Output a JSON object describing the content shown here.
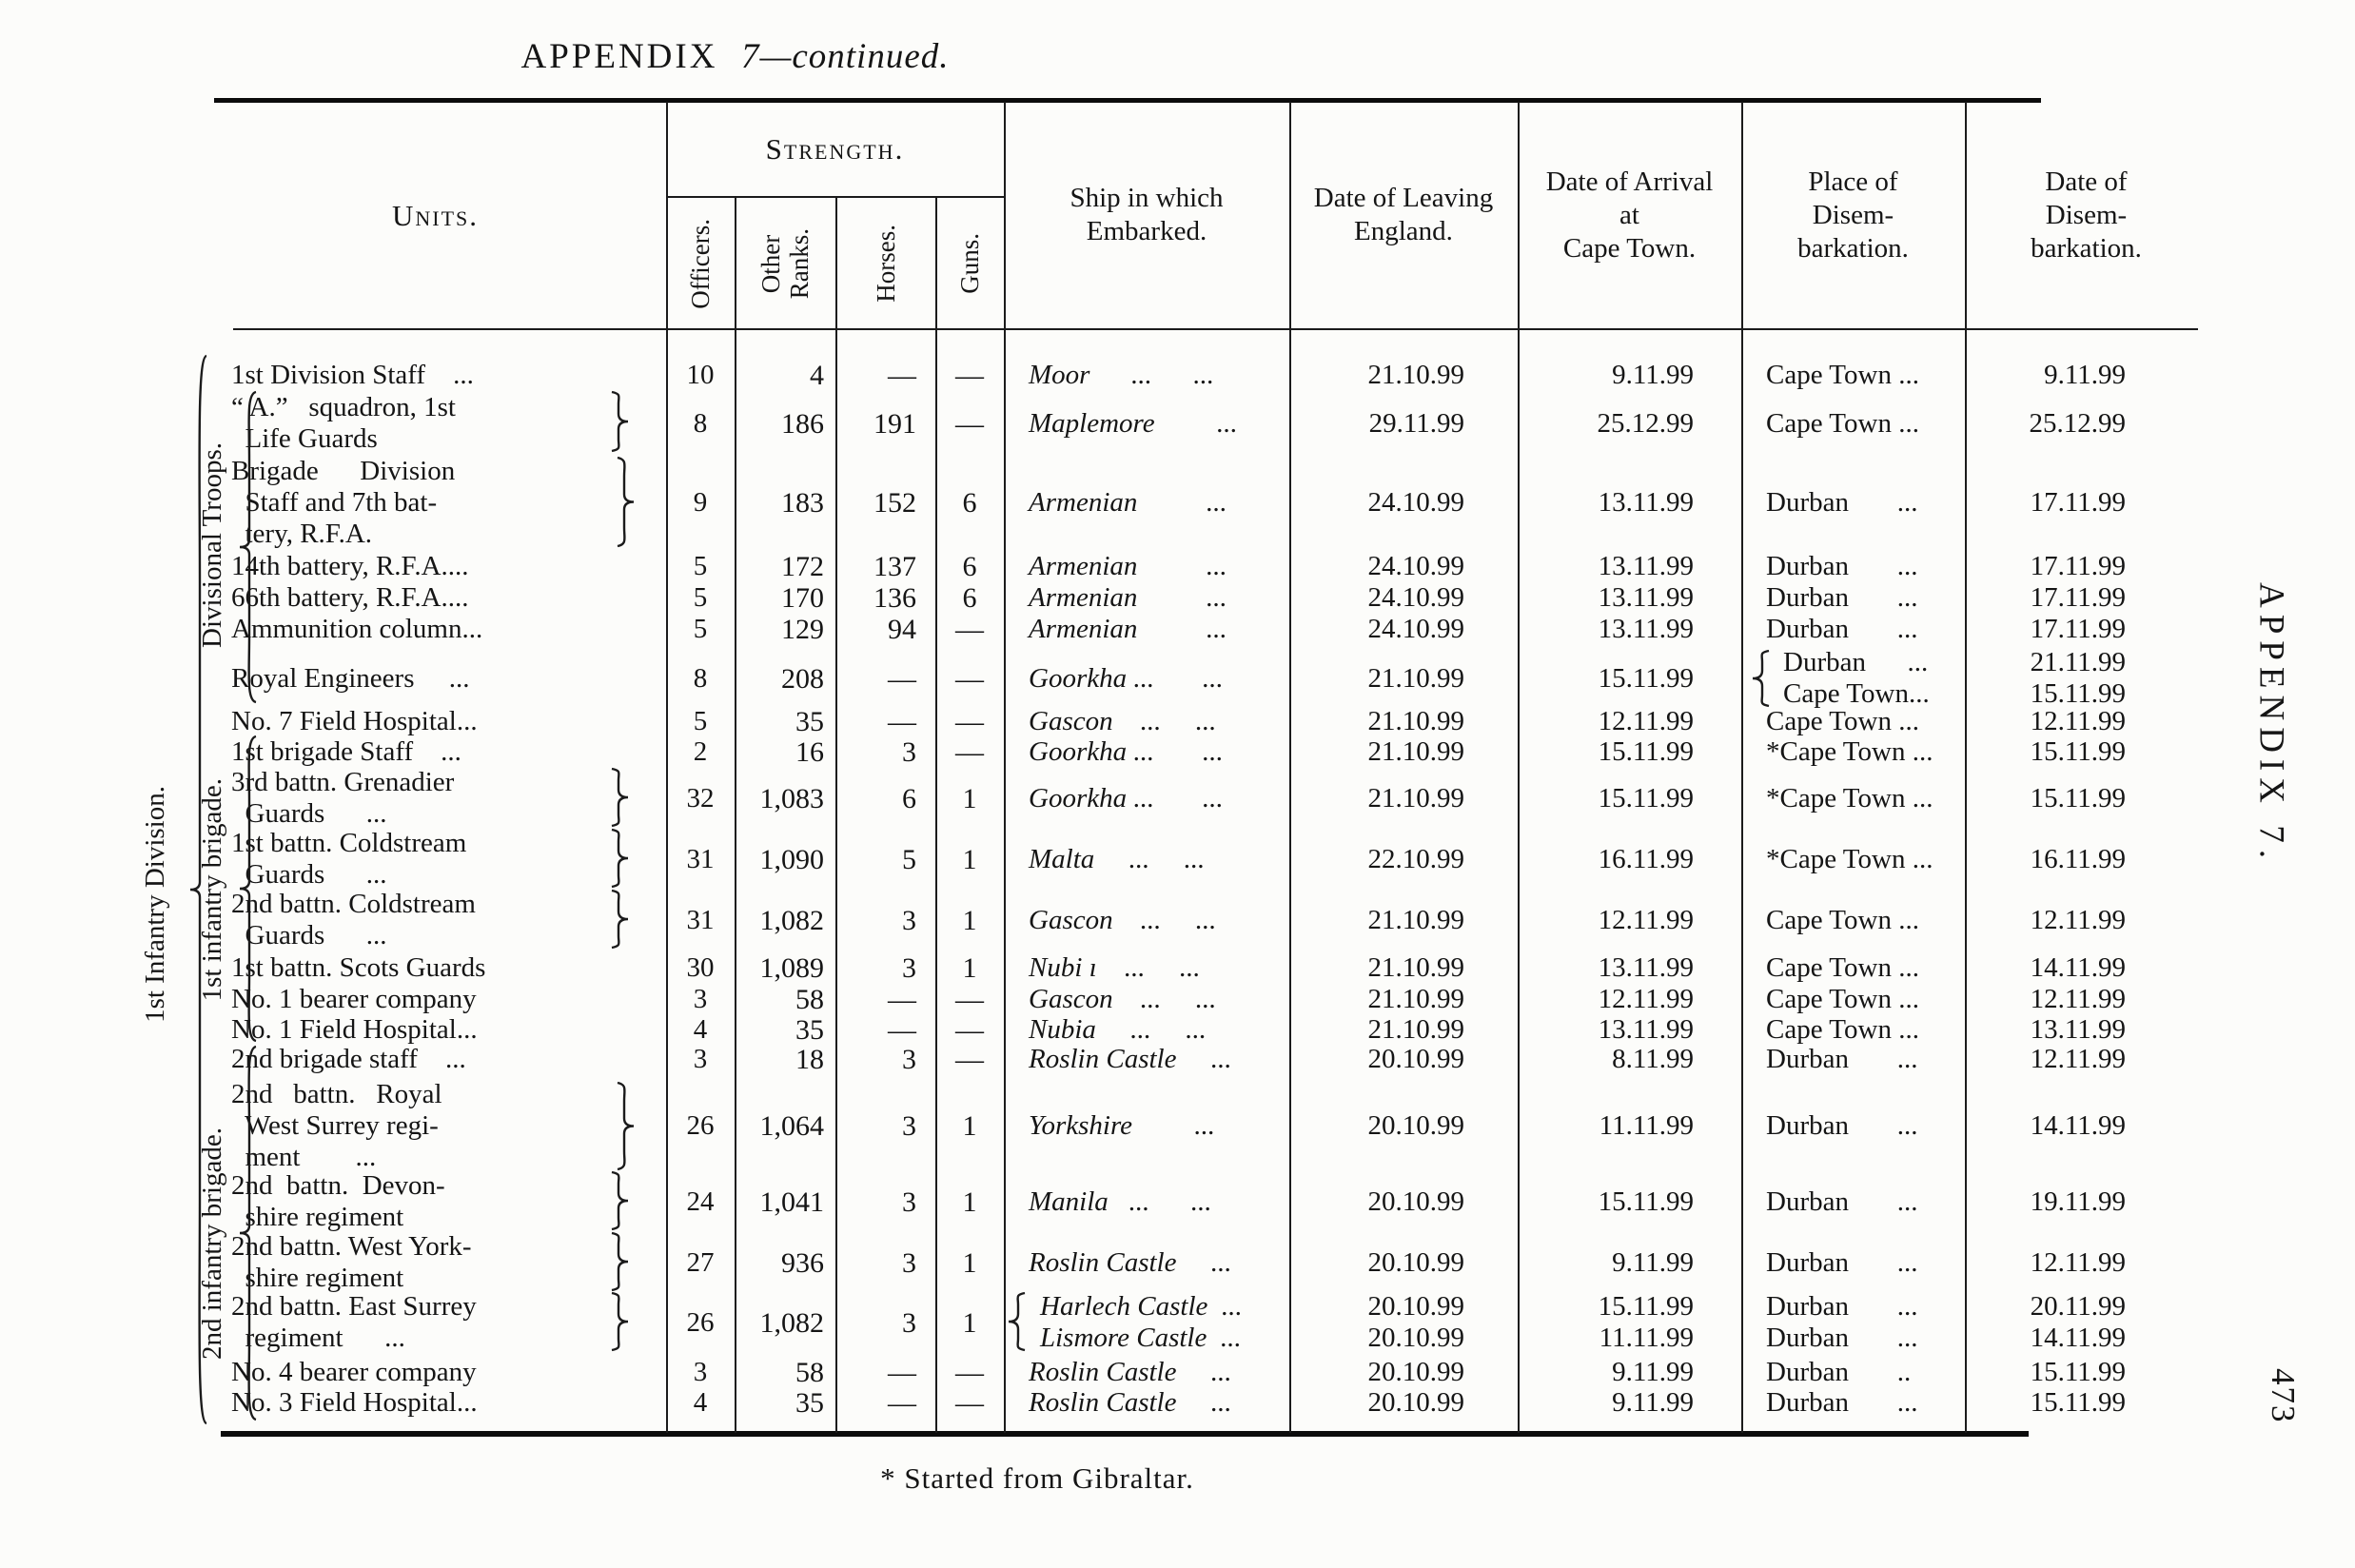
{
  "page": {
    "title_main": "APPENDIX  ",
    "title_italic": "7—continued.",
    "footnote": "* Started from Gibraltar.",
    "margin_label": "APPENDIX 7.",
    "page_number": "473",
    "ink_color": "#151515",
    "paper_color": "#fcfcfa"
  },
  "header": {
    "units": "Units.",
    "strength": "Strength.",
    "strength_cols": [
      "Officers.",
      "Other\nRanks.",
      "Horses.",
      "Guns."
    ],
    "ship": "Ship in which\nEmbarked.",
    "leaving": "Date of Leaving\nEngland.",
    "arrival": "Date of Arrival\nat\nCape Town.",
    "place": "Place of\nDisem-\nbarkation.",
    "disembark": "Date of\nDisem-\nbarkation."
  },
  "groups": {
    "division": "1st Infantry Division.",
    "sub": [
      "Divisional Troops.",
      "1st infantry brigade.",
      "2nd infantry brigade."
    ]
  },
  "rows": [
    {
      "unit": [
        "1st Division Staff    ..."
      ],
      "officers": "10",
      "other": "4",
      "horses": "—",
      "guns": "—",
      "ship": [
        "Moor      ...      ..."
      ],
      "leaving": [
        "21.10.99"
      ],
      "arrival": [
        "9.11.99"
      ],
      "place": [
        "Cape Town ..."
      ],
      "disembark": [
        "9.11.99"
      ]
    },
    {
      "unit": [
        "“ A.”   squadron, 1st",
        "  Life Guards"
      ],
      "officers": "8",
      "other": "186",
      "horses": "191",
      "guns": "—",
      "ship": [
        "Maplemore         ..."
      ],
      "leaving": [
        "29.11.99"
      ],
      "arrival": [
        "25.12.99"
      ],
      "place": [
        "Cape Town ..."
      ],
      "disembark": [
        "25.12.99"
      ]
    },
    {
      "unit": [
        "Brigade      Division",
        "  Staff and 7th bat-",
        "  tery, R.F.A."
      ],
      "officers": "9",
      "other": "183",
      "horses": "152",
      "guns": "6",
      "ship": [
        "Armenian          ..."
      ],
      "leaving": [
        "24.10.99"
      ],
      "arrival": [
        "13.11.99"
      ],
      "place": [
        "Durban       ..."
      ],
      "disembark": [
        "17.11.99"
      ]
    },
    {
      "unit": [
        "14th battery, R.F.A...."
      ],
      "officers": "5",
      "other": "172",
      "horses": "137",
      "guns": "6",
      "ship": [
        "Armenian          ..."
      ],
      "leaving": [
        "24.10.99"
      ],
      "arrival": [
        "13.11.99"
      ],
      "place": [
        "Durban       ..."
      ],
      "disembark": [
        "17.11.99"
      ]
    },
    {
      "unit": [
        "66th battery, R.F.A...."
      ],
      "officers": "5",
      "other": "170",
      "horses": "136",
      "guns": "6",
      "ship": [
        "Armenian          ..."
      ],
      "leaving": [
        "24.10.99"
      ],
      "arrival": [
        "13.11.99"
      ],
      "place": [
        "Durban       ..."
      ],
      "disembark": [
        "17.11.99"
      ]
    },
    {
      "unit": [
        "Ammunition column..."
      ],
      "officers": "5",
      "other": "129",
      "horses": "94",
      "guns": "—",
      "ship": [
        "Armenian          ..."
      ],
      "leaving": [
        "24.10.99"
      ],
      "arrival": [
        "13.11.99"
      ],
      "place": [
        "Durban       ..."
      ],
      "disembark": [
        "17.11.99"
      ]
    },
    {
      "unit": [
        "Royal Engineers     ..."
      ],
      "officers": "8",
      "other": "208",
      "horses": "—",
      "guns": "—",
      "ship": [
        "Goorkha ...       ..."
      ],
      "leaving": [
        "21.10.99"
      ],
      "arrival": [
        "15.11.99"
      ],
      "place": [
        "Durban      ...",
        "Cape Town..."
      ],
      "disembark": [
        "21.11.99",
        "15.11.99"
      ]
    },
    {
      "unit": [
        "No. 7 Field Hospital..."
      ],
      "officers": "5",
      "other": "35",
      "horses": "—",
      "guns": "—",
      "ship": [
        "Gascon    ...     ..."
      ],
      "leaving": [
        "21.10.99"
      ],
      "arrival": [
        "12.11.99"
      ],
      "place": [
        "Cape Town ..."
      ],
      "disembark": [
        "12.11.99"
      ]
    },
    {
      "unit": [
        "1st brigade Staff    ..."
      ],
      "officers": "2",
      "other": "16",
      "horses": "3",
      "guns": "—",
      "ship": [
        "Goorkha ...       ..."
      ],
      "leaving": [
        "21.10.99"
      ],
      "arrival": [
        "15.11.99"
      ],
      "place": [
        "*Cape Town ..."
      ],
      "disembark": [
        "15.11.99"
      ]
    },
    {
      "unit": [
        "3rd battn. Grenadier",
        "  Guards      ..."
      ],
      "officers": "32",
      "other": "1,083",
      "horses": "6",
      "guns": "1",
      "ship": [
        "Goorkha ...       ..."
      ],
      "leaving": [
        "21.10.99"
      ],
      "arrival": [
        "15.11.99"
      ],
      "place": [
        "*Cape Town ..."
      ],
      "disembark": [
        "15.11.99"
      ]
    },
    {
      "unit": [
        "1st battn. Coldstream",
        "  Guards      ..."
      ],
      "officers": "31",
      "other": "1,090",
      "horses": "5",
      "guns": "1",
      "ship": [
        "Malta     ...     ..."
      ],
      "leaving": [
        "22.10.99"
      ],
      "arrival": [
        "16.11.99"
      ],
      "place": [
        "*Cape Town ..."
      ],
      "disembark": [
        "16.11.99"
      ]
    },
    {
      "unit": [
        "2nd battn. Coldstream",
        "  Guards      ..."
      ],
      "officers": "31",
      "other": "1,082",
      "horses": "3",
      "guns": "1",
      "ship": [
        "Gascon    ...     ..."
      ],
      "leaving": [
        "21.10.99"
      ],
      "arrival": [
        "12.11.99"
      ],
      "place": [
        "Cape Town ..."
      ],
      "disembark": [
        "12.11.99"
      ]
    },
    {
      "unit": [
        "1st battn. Scots Guards"
      ],
      "officers": "30",
      "other": "1,089",
      "horses": "3",
      "guns": "1",
      "ship": [
        "Nubi ı    ...     ..."
      ],
      "leaving": [
        "21.10.99"
      ],
      "arrival": [
        "13.11.99"
      ],
      "place": [
        "Cape Town ..."
      ],
      "disembark": [
        "14.11.99"
      ]
    },
    {
      "unit": [
        "No. 1 bearer company"
      ],
      "officers": "3",
      "other": "58",
      "horses": "—",
      "guns": "—",
      "ship": [
        "Gascon    ...     ..."
      ],
      "leaving": [
        "21.10.99"
      ],
      "arrival": [
        "12.11.99"
      ],
      "place": [
        "Cape Town ..."
      ],
      "disembark": [
        "12.11.99"
      ]
    },
    {
      "unit": [
        "No. 1 Field Hospital..."
      ],
      "officers": "4",
      "other": "35",
      "horses": "—",
      "guns": "—",
      "ship": [
        "Nubia     ...     ..."
      ],
      "leaving": [
        "21.10.99"
      ],
      "arrival": [
        "13.11.99"
      ],
      "place": [
        "Cape Town ..."
      ],
      "disembark": [
        "13.11.99"
      ]
    },
    {
      "unit": [
        "2nd brigade staff    ..."
      ],
      "officers": "3",
      "other": "18",
      "horses": "3",
      "guns": "—",
      "ship": [
        "Roslin Castle     ..."
      ],
      "leaving": [
        "20.10.99"
      ],
      "arrival": [
        "8.11.99"
      ],
      "place": [
        "Durban       ..."
      ],
      "disembark": [
        "12.11.99"
      ]
    },
    {
      "unit": [
        "2nd   battn.   Royal",
        "  West Surrey regi-",
        "  ment        ..."
      ],
      "officers": "26",
      "other": "1,064",
      "horses": "3",
      "guns": "1",
      "ship": [
        "Yorkshire         ..."
      ],
      "leaving": [
        "20.10.99"
      ],
      "arrival": [
        "11.11.99"
      ],
      "place": [
        "Durban       ..."
      ],
      "disembark": [
        "14.11.99"
      ]
    },
    {
      "unit": [
        "2nd  battn.  Devon-",
        "  shire regiment"
      ],
      "officers": "24",
      "other": "1,041",
      "horses": "3",
      "guns": "1",
      "ship": [
        "Manila   ...      ..."
      ],
      "leaving": [
        "20.10.99"
      ],
      "arrival": [
        "15.11.99"
      ],
      "place": [
        "Durban       ..."
      ],
      "disembark": [
        "19.11.99"
      ]
    },
    {
      "unit": [
        "2nd battn. West York-",
        "  shire regiment"
      ],
      "officers": "27",
      "other": "936",
      "horses": "3",
      "guns": "1",
      "ship": [
        "Roslin Castle     ..."
      ],
      "leaving": [
        "20.10.99"
      ],
      "arrival": [
        "9.11.99"
      ],
      "place": [
        "Durban       ..."
      ],
      "disembark": [
        "12.11.99"
      ]
    },
    {
      "unit": [
        "2nd battn. East Surrey",
        "  regiment      ..."
      ],
      "officers": "26",
      "other": "1,082",
      "horses": "3",
      "guns": "1",
      "ship": [
        "Harlech Castle  ...",
        "Lismore Castle  ..."
      ],
      "leaving": [
        "20.10.99",
        "20.10.99"
      ],
      "arrival": [
        "15.11.99",
        "11.11.99"
      ],
      "place": [
        "Durban       ...",
        "Durban       ..."
      ],
      "disembark": [
        "20.11.99",
        "14.11.99"
      ]
    },
    {
      "unit": [
        "No. 4 bearer company"
      ],
      "officers": "3",
      "other": "58",
      "horses": "—",
      "guns": "—",
      "ship": [
        "Roslin Castle     ..."
      ],
      "leaving": [
        "20.10.99"
      ],
      "arrival": [
        "9.11.99"
      ],
      "place": [
        "Durban       .."
      ],
      "disembark": [
        "15.11.99"
      ]
    },
    {
      "unit": [
        "No. 3 Field Hospital..."
      ],
      "officers": "4",
      "other": "35",
      "horses": "—",
      "guns": "—",
      "ship": [
        "Roslin Castle     ..."
      ],
      "leaving": [
        "20.10.99"
      ],
      "arrival": [
        "9.11.99"
      ],
      "place": [
        "Durban       ..."
      ],
      "disembark": [
        "15.11.99"
      ]
    }
  ]
}
